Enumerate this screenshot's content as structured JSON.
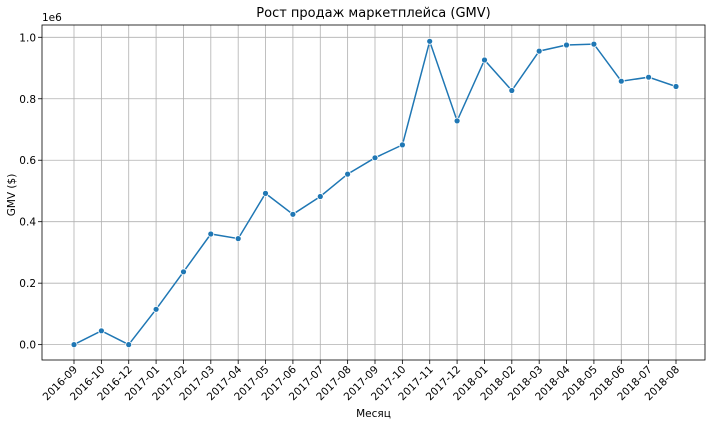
{
  "chart_data": {
    "type": "line",
    "title": "Рост продаж маркетплейса (GMV)",
    "xlabel": "Месяц",
    "ylabel": "GMV ($)",
    "y_offset_label": "1e6",
    "categories": [
      "2016-09",
      "2016-10",
      "2016-12",
      "2017-01",
      "2017-02",
      "2017-03",
      "2017-04",
      "2017-05",
      "2017-06",
      "2017-07",
      "2017-08",
      "2017-09",
      "2017-10",
      "2017-11",
      "2017-12",
      "2018-01",
      "2018-02",
      "2018-03",
      "2018-04",
      "2018-05",
      "2018-06",
      "2018-07",
      "2018-08"
    ],
    "series": [
      {
        "color": "#1f77b4",
        "values": [
          0,
          45000,
          0,
          115000,
          237000,
          360000,
          345000,
          492000,
          424000,
          482000,
          555000,
          608000,
          650000,
          987000,
          728000,
          926000,
          827000,
          955000,
          975000,
          978000,
          857000,
          870000,
          840000
        ]
      }
    ],
    "ylim": [
      -0.05,
      1.04
    ],
    "yticks": [
      0.0,
      0.2,
      0.4,
      0.6,
      0.8,
      1.0
    ],
    "ytick_labels": [
      "0.0",
      "0.2",
      "0.4",
      "0.6",
      "0.8",
      "1.0"
    ],
    "grid": true,
    "markers": true
  }
}
